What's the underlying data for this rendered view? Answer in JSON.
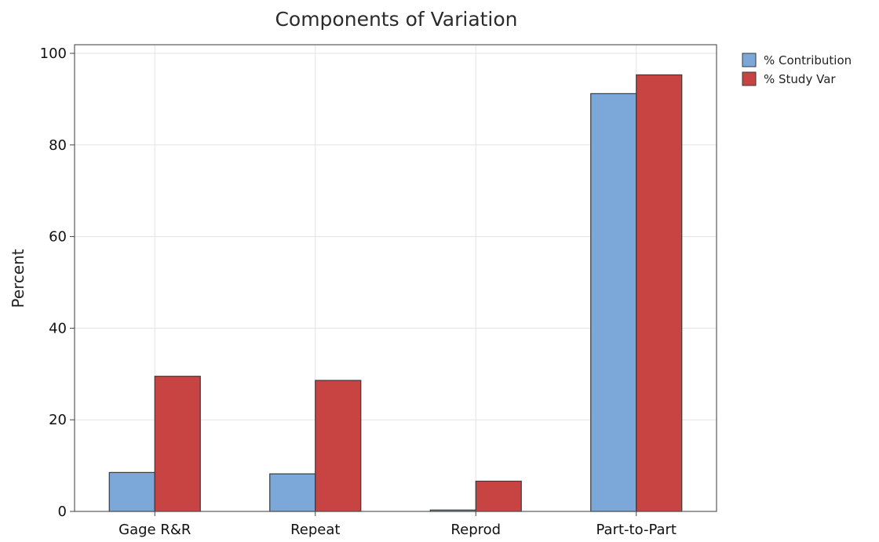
{
  "chart_data": {
    "type": "bar",
    "title": "Components of Variation",
    "xlabel": "",
    "ylabel": "Percent",
    "categories": [
      "Gage R&R",
      "Repeat",
      "Reprod",
      "Part-to-Part"
    ],
    "series": [
      {
        "name": "% Contribution",
        "color": "#7ba7d9",
        "values": [
          8.5,
          8.2,
          0.3,
          91.2
        ]
      },
      {
        "name": "% Study Var",
        "color": "#c74443",
        "values": [
          29.5,
          28.6,
          6.6,
          95.3
        ]
      }
    ],
    "ylim": [
      0,
      100
    ],
    "yticks": [
      "0",
      "20",
      "40",
      "60",
      "80",
      "100"
    ],
    "grid": true,
    "legend_position": "top-right"
  }
}
